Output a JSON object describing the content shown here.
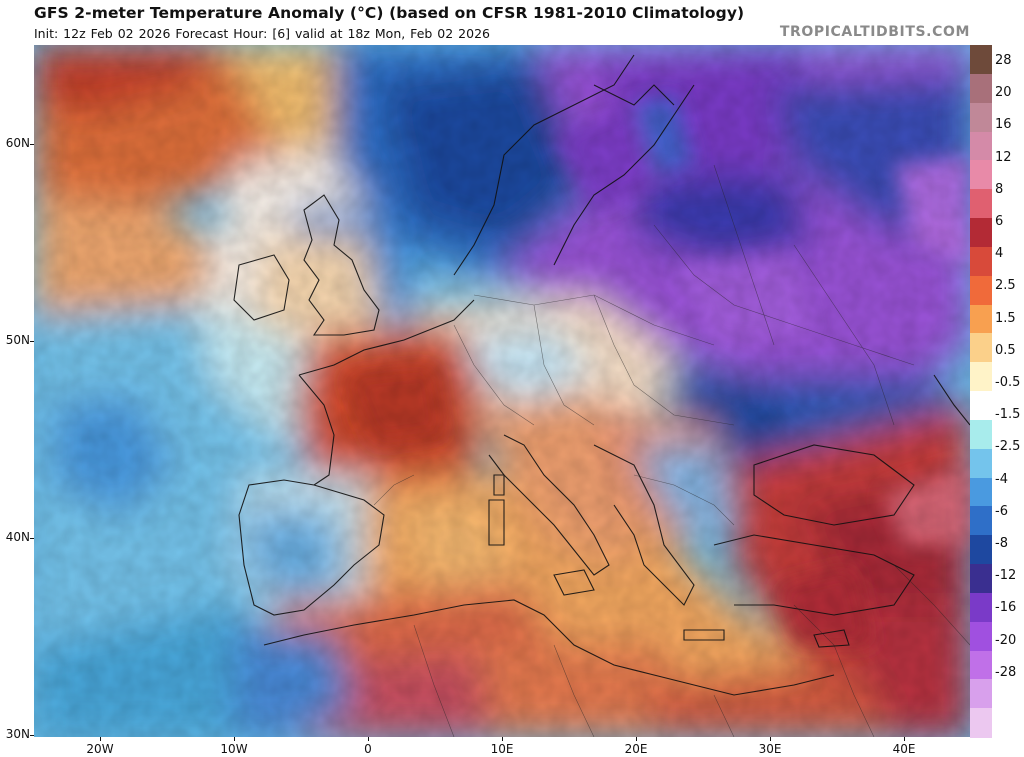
{
  "header": {
    "title": "GFS 2-meter Temperature Anomaly (°C) (based on CFSR 1981-2010 Climatology)",
    "subtitle": "Init: 12z Feb 02 2026   Forecast Hour: [6]   valid at 18z Mon, Feb 02 2026",
    "brand": "TROPICALTIDBITS.COM"
  },
  "map": {
    "lat_labels": [
      "60N",
      "50N",
      "40N",
      "30N"
    ],
    "lon_labels": [
      "20W",
      "10W",
      "0",
      "10E",
      "20E",
      "30E",
      "40E"
    ],
    "lat_values": [
      60,
      50,
      40,
      30
    ],
    "lon_values": [
      -20,
      -10,
      0,
      10,
      20,
      30,
      40
    ]
  },
  "colorbar": {
    "labels": [
      "28",
      "20",
      "16",
      "12",
      "8",
      "6",
      "4",
      "2.5",
      "1.5",
      "0.5",
      "-0.5",
      "-1.5",
      "-2.5",
      "-4",
      "-6",
      "-8",
      "-12",
      "-16",
      "-20",
      "-28"
    ],
    "colors": [
      "#6e4a3a",
      "#a8707a",
      "#c08898",
      "#d48aa8",
      "#e88aa8",
      "#e06070",
      "#b32a35",
      "#d84a3a",
      "#f06a3a",
      "#f8a050",
      "#fbd08a",
      "#fff3c8",
      "#ffffff",
      "#a8ecec",
      "#74c4ec",
      "#4a9ae0",
      "#2f6fc8",
      "#1e48a0",
      "#3a2f90",
      "#7a3ac8",
      "#a050e0",
      "#c070e8",
      "#d8a0ec",
      "#ecc8f0"
    ]
  },
  "colors": {
    "ocean_west": "#6bbde8",
    "warm_france": "#d8502e",
    "warm_med": "#f4a860",
    "cold_north": "#3768c0",
    "cold_east": "#9a52d8",
    "warm_southeast": "#c83c3a"
  }
}
